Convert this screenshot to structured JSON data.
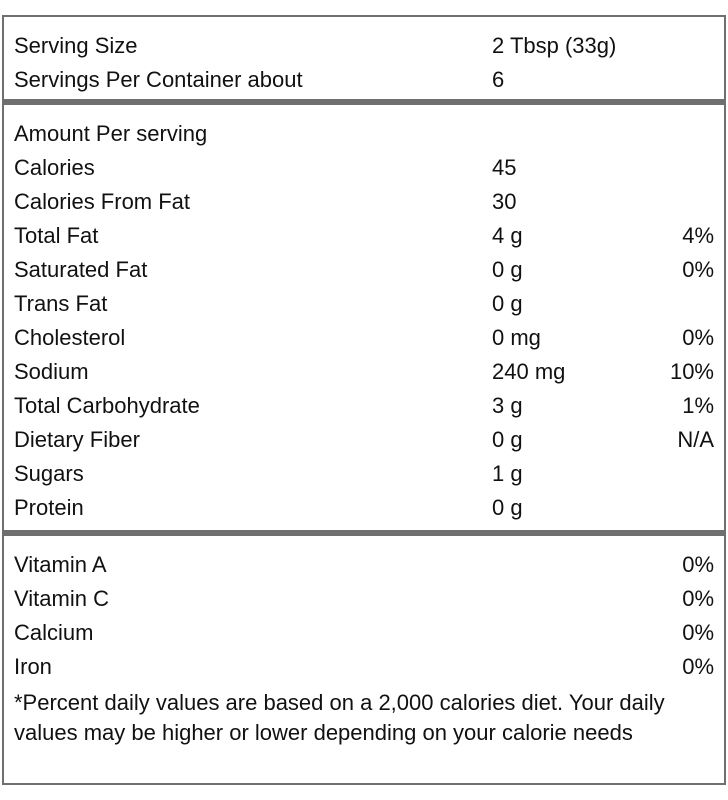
{
  "serving": {
    "size_label": "Serving Size",
    "size_value": "2 Tbsp (33g)",
    "per_container_label": "Servings Per Container about",
    "per_container_value": "6"
  },
  "amount_heading": "Amount Per serving",
  "nutrients": [
    {
      "name": "Calories",
      "value": "45",
      "dv": ""
    },
    {
      "name": "Calories From Fat",
      "value": "30",
      "dv": ""
    },
    {
      "name": "Total Fat",
      "value": "4 g",
      "dv": "4%"
    },
    {
      "name": "Saturated Fat",
      "value": "0 g",
      "dv": "0%"
    },
    {
      "name": "Trans Fat",
      "value": "0 g",
      "dv": ""
    },
    {
      "name": "Cholesterol",
      "value": "0 mg",
      "dv": "0%"
    },
    {
      "name": "Sodium",
      "value": "240 mg",
      "dv": "10%"
    },
    {
      "name": "Total Carbohydrate",
      "value": "3 g",
      "dv": "1%"
    },
    {
      "name": "Dietary Fiber",
      "value": "0 g",
      "dv": "N/A"
    },
    {
      "name": "Sugars",
      "value": "1 g",
      "dv": ""
    },
    {
      "name": "Protein",
      "value": "0 g",
      "dv": ""
    }
  ],
  "vitamins": [
    {
      "name": "Vitamin A",
      "dv": "0%"
    },
    {
      "name": "Vitamin C",
      "dv": "0%"
    },
    {
      "name": "Calcium",
      "dv": "0%"
    },
    {
      "name": "Iron",
      "dv": "0%"
    }
  ],
  "footnote": "*Percent daily values are based on a 2,000 calories diet. Your daily values may be higher or lower depending on your calorie needs",
  "colors": {
    "border": "#6f6f6f",
    "text": "#111111"
  }
}
